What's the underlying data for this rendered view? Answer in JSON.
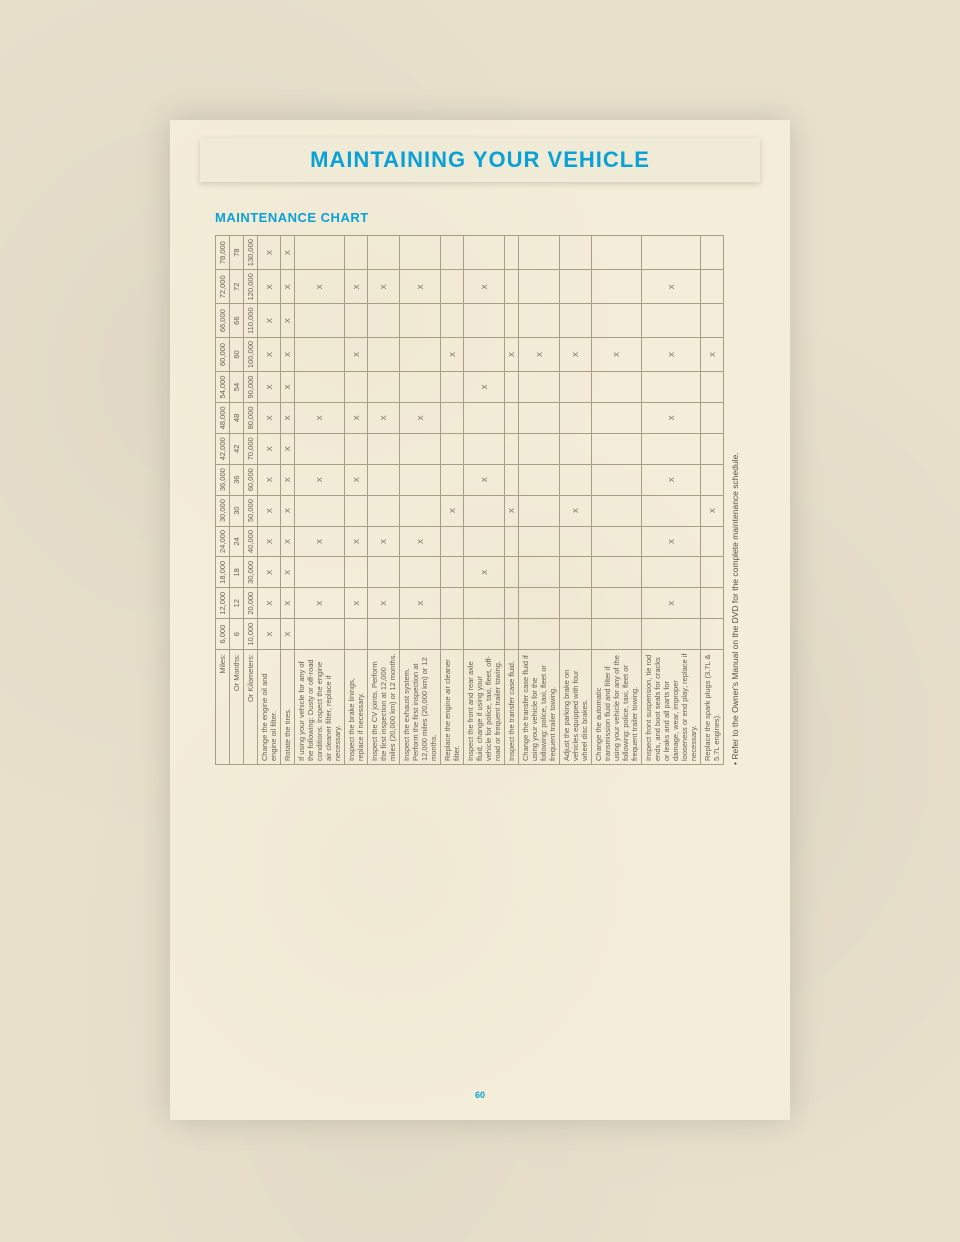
{
  "page": {
    "header": "MAINTAINING YOUR VEHICLE",
    "section_title": "MAINTENANCE CHART",
    "page_number": "60",
    "footnote_bullet": "• Refer to the Owner's Manual on the DVD for the complete maintenance schedule."
  },
  "intervals": {
    "miles_label": "Miles:",
    "months_label": "Or Months:",
    "km_label": "Or Kilometers:",
    "miles": [
      "6,000",
      "12,000",
      "18,000",
      "24,000",
      "30,000",
      "36,000",
      "42,000",
      "48,000",
      "54,000",
      "60,000",
      "66,000",
      "72,000",
      "78,000"
    ],
    "months": [
      "6",
      "12",
      "18",
      "24",
      "30",
      "36",
      "42",
      "48",
      "54",
      "60",
      "66",
      "72",
      "78"
    ],
    "km": [
      "10,000",
      "20,000",
      "30,000",
      "40,000",
      "50,000",
      "60,000",
      "70,000",
      "80,000",
      "90,000",
      "100,000",
      "110,000",
      "120,000",
      "130,000"
    ]
  },
  "rows": [
    {
      "label": "Change the engine oil and engine oil filter.",
      "marks": [
        "X",
        "X",
        "X",
        "X",
        "X",
        "X",
        "X",
        "X",
        "X",
        "X",
        "X",
        "X",
        "X"
      ]
    },
    {
      "label": "Rotate the tires.",
      "marks": [
        "X",
        "X",
        "X",
        "X",
        "X",
        "X",
        "X",
        "X",
        "X",
        "X",
        "X",
        "X",
        "X"
      ]
    },
    {
      "label": "If using your vehicle for any of the following: Dusty or off-road conditions. Inspect the engine air cleaner filter, replace if necessary.",
      "marks": [
        "",
        "X",
        "",
        "X",
        "",
        "X",
        "",
        "X",
        "",
        "",
        "",
        "X",
        ""
      ]
    },
    {
      "label": "Inspect the brake linings, replace if necessary.",
      "marks": [
        "",
        "X",
        "",
        "X",
        "",
        "X",
        "",
        "X",
        "",
        "X",
        "",
        "X",
        ""
      ]
    },
    {
      "label": "Inspect the CV joints. Perform the first inspection at 12,000 miles (20,000 km) or 12 months.",
      "marks": [
        "",
        "X",
        "",
        "X",
        "",
        "",
        "",
        "X",
        "",
        "",
        "",
        "X",
        ""
      ]
    },
    {
      "label": "Inspect the exhaust system. Perform the first inspection at 12,000 miles (20,000 km) or 12 months.",
      "marks": [
        "",
        "X",
        "",
        "X",
        "",
        "",
        "",
        "X",
        "",
        "",
        "",
        "X",
        ""
      ]
    },
    {
      "label": "Replace the engine air cleaner filter.",
      "marks": [
        "",
        "",
        "",
        "",
        "X",
        "",
        "",
        "",
        "",
        "X",
        "",
        "",
        ""
      ]
    },
    {
      "label": "Inspect the front and rear axle fluid, change if using your vehicle for police, taxi, fleet, off-road or frequent trailer towing.",
      "marks": [
        "",
        "",
        "X",
        "",
        "",
        "X",
        "",
        "",
        "X",
        "",
        "",
        "X",
        ""
      ]
    },
    {
      "label": "Inspect the transfer case fluid.",
      "marks": [
        "",
        "",
        "",
        "",
        "X",
        "",
        "",
        "",
        "",
        "X",
        "",
        "",
        ""
      ]
    },
    {
      "label": "Change the transfer case fluid if using your vehicle for the following: police, taxi, fleet or frequent trailer towing.",
      "marks": [
        "",
        "",
        "",
        "",
        "",
        "",
        "",
        "",
        "",
        "X",
        "",
        "",
        ""
      ]
    },
    {
      "label": "Adjust the parking brake on vehicles equipped with four wheel disc brakes.",
      "marks": [
        "",
        "",
        "",
        "",
        "X",
        "",
        "",
        "",
        "",
        "X",
        "",
        "",
        ""
      ]
    },
    {
      "label": "Change the automatic transmission fluid and filter if using your vehicle for any of the following: police, taxi, fleet or frequent trailer towing.",
      "marks": [
        "",
        "",
        "",
        "",
        "",
        "",
        "",
        "",
        "",
        "X",
        "",
        "",
        ""
      ]
    },
    {
      "label": "Inspect front suspension, tie rod ends, and boot seals for cracks or leaks and all parts for damage, wear, improper looseness or end play; replace if necessary.",
      "marks": [
        "",
        "X",
        "",
        "X",
        "",
        "X",
        "",
        "X",
        "",
        "X",
        "",
        "X",
        ""
      ]
    },
    {
      "label": "Replace the spark plugs (3.7L & 5.7L engines).",
      "marks": [
        "",
        "",
        "",
        "",
        "X",
        "",
        "",
        "",
        "",
        "X",
        "",
        "",
        ""
      ]
    }
  ],
  "style": {
    "accent_color": "#0aa1d6",
    "text_color": "#6b6150",
    "border_color": "#a89e84",
    "page_bg": "#f4edd9",
    "body_bg": "#e8e0cb"
  }
}
